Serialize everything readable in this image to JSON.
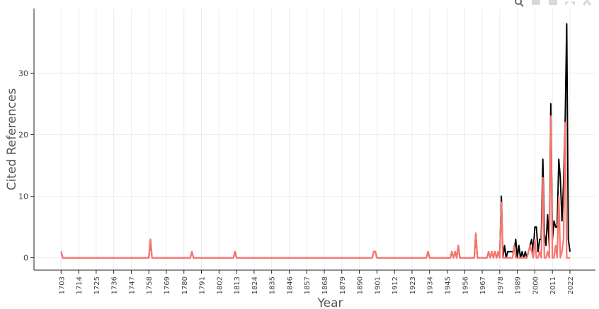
{
  "toolbar": {
    "buttons": [
      {
        "icon": "zoom-icon"
      },
      {
        "icon": "zoom-in-icon"
      },
      {
        "icon": "zoom-out-icon"
      },
      {
        "icon": "autoscale-icon"
      },
      {
        "icon": "reset-axes-icon"
      }
    ]
  },
  "chart_data": {
    "type": "line",
    "xlabel": "Year",
    "ylabel": "Cited References",
    "xlim": [
      1686,
      2038
    ],
    "ylim": [
      -2,
      40.5
    ],
    "y_ticks": [
      0,
      10,
      20,
      30
    ],
    "x_ticks": [
      1703,
      1714,
      1725,
      1736,
      1747,
      1758,
      1769,
      1780,
      1791,
      1802,
      1813,
      1824,
      1835,
      1846,
      1857,
      1868,
      1879,
      1890,
      1901,
      1912,
      1923,
      1934,
      1945,
      1956,
      1967,
      1978,
      1989,
      2000,
      2011,
      2022
    ],
    "grid": true,
    "series": [
      {
        "color": "#000000",
        "points": [
          [
            1703,
            1
          ],
          [
            1704,
            0
          ],
          [
            1758,
            0
          ],
          [
            1759,
            3
          ],
          [
            1760,
            0
          ],
          [
            1784,
            0
          ],
          [
            1785,
            1
          ],
          [
            1786,
            0
          ],
          [
            1811,
            0
          ],
          [
            1812,
            1
          ],
          [
            1813,
            0
          ],
          [
            1898,
            0
          ],
          [
            1899,
            1
          ],
          [
            1900,
            1
          ],
          [
            1901,
            0
          ],
          [
            1932,
            0
          ],
          [
            1933,
            1
          ],
          [
            1934,
            0
          ],
          [
            1947,
            0
          ],
          [
            1948,
            1
          ],
          [
            1949,
            0
          ],
          [
            1950,
            1
          ],
          [
            1951,
            0
          ],
          [
            1952,
            2
          ],
          [
            1953,
            0
          ],
          [
            1962,
            0
          ],
          [
            1963,
            4
          ],
          [
            1964,
            0
          ],
          [
            1970,
            0
          ],
          [
            1971,
            1
          ],
          [
            1972,
            0
          ],
          [
            1973,
            1
          ],
          [
            1974,
            0
          ],
          [
            1975,
            1
          ],
          [
            1976,
            0
          ],
          [
            1977,
            1
          ],
          [
            1978,
            0
          ],
          [
            1979,
            10
          ],
          [
            1980,
            0
          ],
          [
            1981,
            2
          ],
          [
            1982,
            0
          ],
          [
            1983,
            1
          ],
          [
            1984,
            1
          ],
          [
            1985,
            1
          ],
          [
            1986,
            1
          ],
          [
            1987,
            1
          ],
          [
            1988,
            3
          ],
          [
            1989,
            0
          ],
          [
            1990,
            2
          ],
          [
            1991,
            0
          ],
          [
            1992,
            1
          ],
          [
            1993,
            0
          ],
          [
            1994,
            1
          ],
          [
            1995,
            0
          ],
          [
            1996,
            1
          ],
          [
            1997,
            2
          ],
          [
            1998,
            3
          ],
          [
            1999,
            1
          ],
          [
            2000,
            5
          ],
          [
            2001,
            5
          ],
          [
            2002,
            1
          ],
          [
            2003,
            3
          ],
          [
            2004,
            3
          ],
          [
            2005,
            16
          ],
          [
            2006,
            4
          ],
          [
            2007,
            2
          ],
          [
            2008,
            7
          ],
          [
            2009,
            2
          ],
          [
            2010,
            25
          ],
          [
            2011,
            3
          ],
          [
            2012,
            6
          ],
          [
            2013,
            5
          ],
          [
            2014,
            5
          ],
          [
            2015,
            16
          ],
          [
            2016,
            13
          ],
          [
            2017,
            6
          ],
          [
            2018,
            12
          ],
          [
            2019,
            22
          ],
          [
            2020,
            38
          ],
          [
            2021,
            3
          ],
          [
            2022,
            1
          ]
        ]
      },
      {
        "color": "#f8766d",
        "points": [
          [
            1703,
            1
          ],
          [
            1704,
            0
          ],
          [
            1758,
            0
          ],
          [
            1759,
            3
          ],
          [
            1760,
            0
          ],
          [
            1784,
            0
          ],
          [
            1785,
            1
          ],
          [
            1786,
            0
          ],
          [
            1811,
            0
          ],
          [
            1812,
            1
          ],
          [
            1813,
            0
          ],
          [
            1898,
            0
          ],
          [
            1899,
            1
          ],
          [
            1900,
            1
          ],
          [
            1901,
            0
          ],
          [
            1932,
            0
          ],
          [
            1933,
            1
          ],
          [
            1934,
            0
          ],
          [
            1947,
            0
          ],
          [
            1948,
            1
          ],
          [
            1949,
            0
          ],
          [
            1950,
            1
          ],
          [
            1951,
            0
          ],
          [
            1952,
            2
          ],
          [
            1953,
            0
          ],
          [
            1962,
            0
          ],
          [
            1963,
            4
          ],
          [
            1964,
            0
          ],
          [
            1970,
            0
          ],
          [
            1971,
            1
          ],
          [
            1972,
            0
          ],
          [
            1973,
            1
          ],
          [
            1974,
            0
          ],
          [
            1975,
            1
          ],
          [
            1976,
            0
          ],
          [
            1977,
            1
          ],
          [
            1978,
            0
          ],
          [
            1979,
            9
          ],
          [
            1980,
            0
          ],
          [
            1986,
            0
          ],
          [
            1987,
            2
          ],
          [
            1988,
            0
          ],
          [
            1995,
            0
          ],
          [
            1996,
            1
          ],
          [
            1997,
            2
          ],
          [
            1998,
            1
          ],
          [
            1999,
            0
          ],
          [
            2000,
            3
          ],
          [
            2001,
            0
          ],
          [
            2002,
            0
          ],
          [
            2003,
            1
          ],
          [
            2004,
            0
          ],
          [
            2005,
            13
          ],
          [
            2006,
            0
          ],
          [
            2007,
            0
          ],
          [
            2008,
            1
          ],
          [
            2009,
            0
          ],
          [
            2010,
            23
          ],
          [
            2011,
            0
          ],
          [
            2012,
            0
          ],
          [
            2013,
            2
          ],
          [
            2014,
            0
          ],
          [
            2015,
            10
          ],
          [
            2016,
            0
          ],
          [
            2017,
            1
          ],
          [
            2018,
            3
          ],
          [
            2019,
            22
          ],
          [
            2020,
            0
          ],
          [
            2021,
            0
          ],
          [
            2022,
            0
          ]
        ]
      }
    ]
  }
}
